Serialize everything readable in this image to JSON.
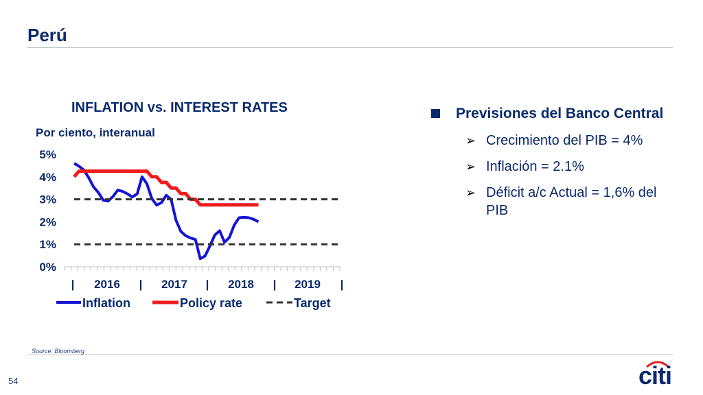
{
  "slide": {
    "title": "Perú",
    "source": "Source: Bloomberg",
    "page_number": "54",
    "logo_text": "citi"
  },
  "colors": {
    "accent": "#0b2a6b",
    "inflation": "#1414d4",
    "policy": "#ee1c1c",
    "target": "#333333"
  },
  "chart_data": {
    "type": "line",
    "title": "INFLATION vs. INTEREST RATES",
    "subtitle": "Por ciento, interanual",
    "yticks": [
      "0%",
      "1%",
      "2%",
      "3%",
      "4%",
      "5%"
    ],
    "ylim": [
      0,
      5
    ],
    "xlim": [
      0,
      42
    ],
    "xtick_labels": [
      "|",
      "2016",
      "|",
      "2017",
      "|",
      "2018",
      "|",
      "2019",
      "|"
    ],
    "legend_position": "bottom",
    "series": [
      {
        "name": "Inflation",
        "color": "#1414d4",
        "dash": "solid",
        "x": [
          0,
          1,
          2,
          3,
          4,
          5,
          6,
          7,
          8,
          9,
          10,
          11,
          12,
          13,
          14,
          15,
          16,
          17,
          18,
          19,
          20,
          21,
          22,
          23,
          24,
          25,
          26,
          27,
          28,
          29,
          30,
          31,
          32,
          33,
          34,
          35,
          36,
          37,
          38
        ],
        "y": [
          4.6,
          4.47,
          4.3,
          3.96,
          3.55,
          3.3,
          2.96,
          2.92,
          3.12,
          3.41,
          3.35,
          3.24,
          3.1,
          3.24,
          4.0,
          3.69,
          3.04,
          2.74,
          2.85,
          3.18,
          2.99,
          2.07,
          1.57,
          1.38,
          1.28,
          1.21,
          0.36,
          0.48,
          0.93,
          1.41,
          1.6,
          1.09,
          1.3,
          1.85,
          2.18,
          2.2,
          2.18,
          2.11,
          2.0
        ]
      },
      {
        "name": "Policy rate",
        "color": "#ee1c1c",
        "dash": "solid",
        "x": [
          0,
          1,
          2,
          3,
          4,
          5,
          6,
          7,
          8,
          9,
          10,
          11,
          12,
          13,
          14,
          15,
          16,
          17,
          18,
          19,
          20,
          21,
          22,
          23,
          24,
          25,
          26,
          27,
          28,
          29,
          30,
          31,
          32,
          33,
          34,
          35,
          36,
          37,
          38
        ],
        "y": [
          4.0,
          4.25,
          4.25,
          4.25,
          4.25,
          4.25,
          4.25,
          4.25,
          4.25,
          4.25,
          4.25,
          4.25,
          4.25,
          4.25,
          4.25,
          4.25,
          4.0,
          4.0,
          3.75,
          3.75,
          3.5,
          3.5,
          3.25,
          3.25,
          3.0,
          3.0,
          2.75,
          2.75,
          2.75,
          2.75,
          2.75,
          2.75,
          2.75,
          2.75,
          2.75,
          2.75,
          2.75,
          2.75,
          2.75
        ]
      },
      {
        "name": "Target",
        "color": "#333333",
        "dash": "dashed",
        "lines": [
          {
            "x": [
              0,
              42
            ],
            "y": [
              3,
              3
            ]
          },
          {
            "x": [
              0,
              42
            ],
            "y": [
              1,
              1
            ]
          }
        ]
      }
    ]
  },
  "bullets": {
    "main": "Previsiones del Banco Central",
    "items": [
      "Crecimiento del PIB = 4%",
      "Inflación = 2.1%",
      "Déficit a/c Actual = 1,6% del PIB"
    ]
  }
}
